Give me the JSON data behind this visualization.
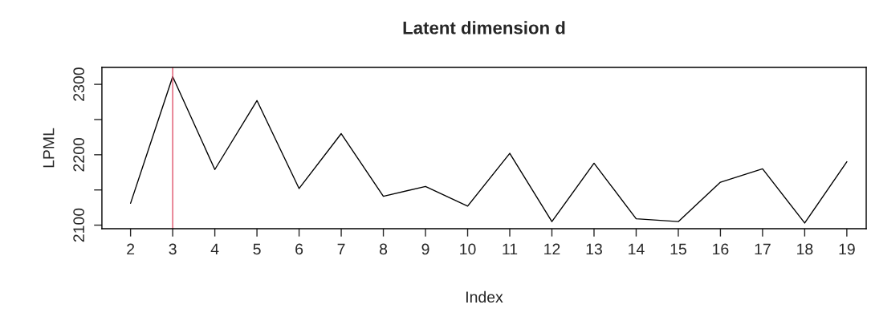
{
  "chart_data": {
    "type": "line",
    "title": "Latent dimension d",
    "xlabel": "Index",
    "ylabel": "LPML",
    "x": [
      2,
      3,
      4,
      5,
      6,
      7,
      8,
      9,
      10,
      11,
      12,
      13,
      14,
      15,
      16,
      17,
      18,
      19
    ],
    "series": [
      {
        "color": "#000000",
        "values": [
          2131,
          2311,
          2179,
          2277,
          2152,
          2230,
          2141,
          2155,
          2127,
          2202,
          2105,
          2188,
          2109,
          2105,
          2161,
          2180,
          2103,
          2190
        ]
      }
    ],
    "xlim": [
      1.32,
      19.46
    ],
    "xticks": [
      2,
      3,
      4,
      5,
      6,
      7,
      8,
      9,
      10,
      11,
      12,
      13,
      14,
      15,
      16,
      17,
      18,
      19
    ],
    "ylim": [
      2095,
      2324
    ],
    "yticks": [
      2100,
      {
        "value": 2150,
        "label": null
      },
      2200,
      {
        "value": 2250,
        "label": null
      },
      2300
    ],
    "ref_lines": [
      {
        "axis": "x",
        "value": 3,
        "color": "#df536b",
        "line_style": "solid"
      }
    ],
    "grid": false,
    "legend": false,
    "marker": "none",
    "line_style": "solid"
  }
}
